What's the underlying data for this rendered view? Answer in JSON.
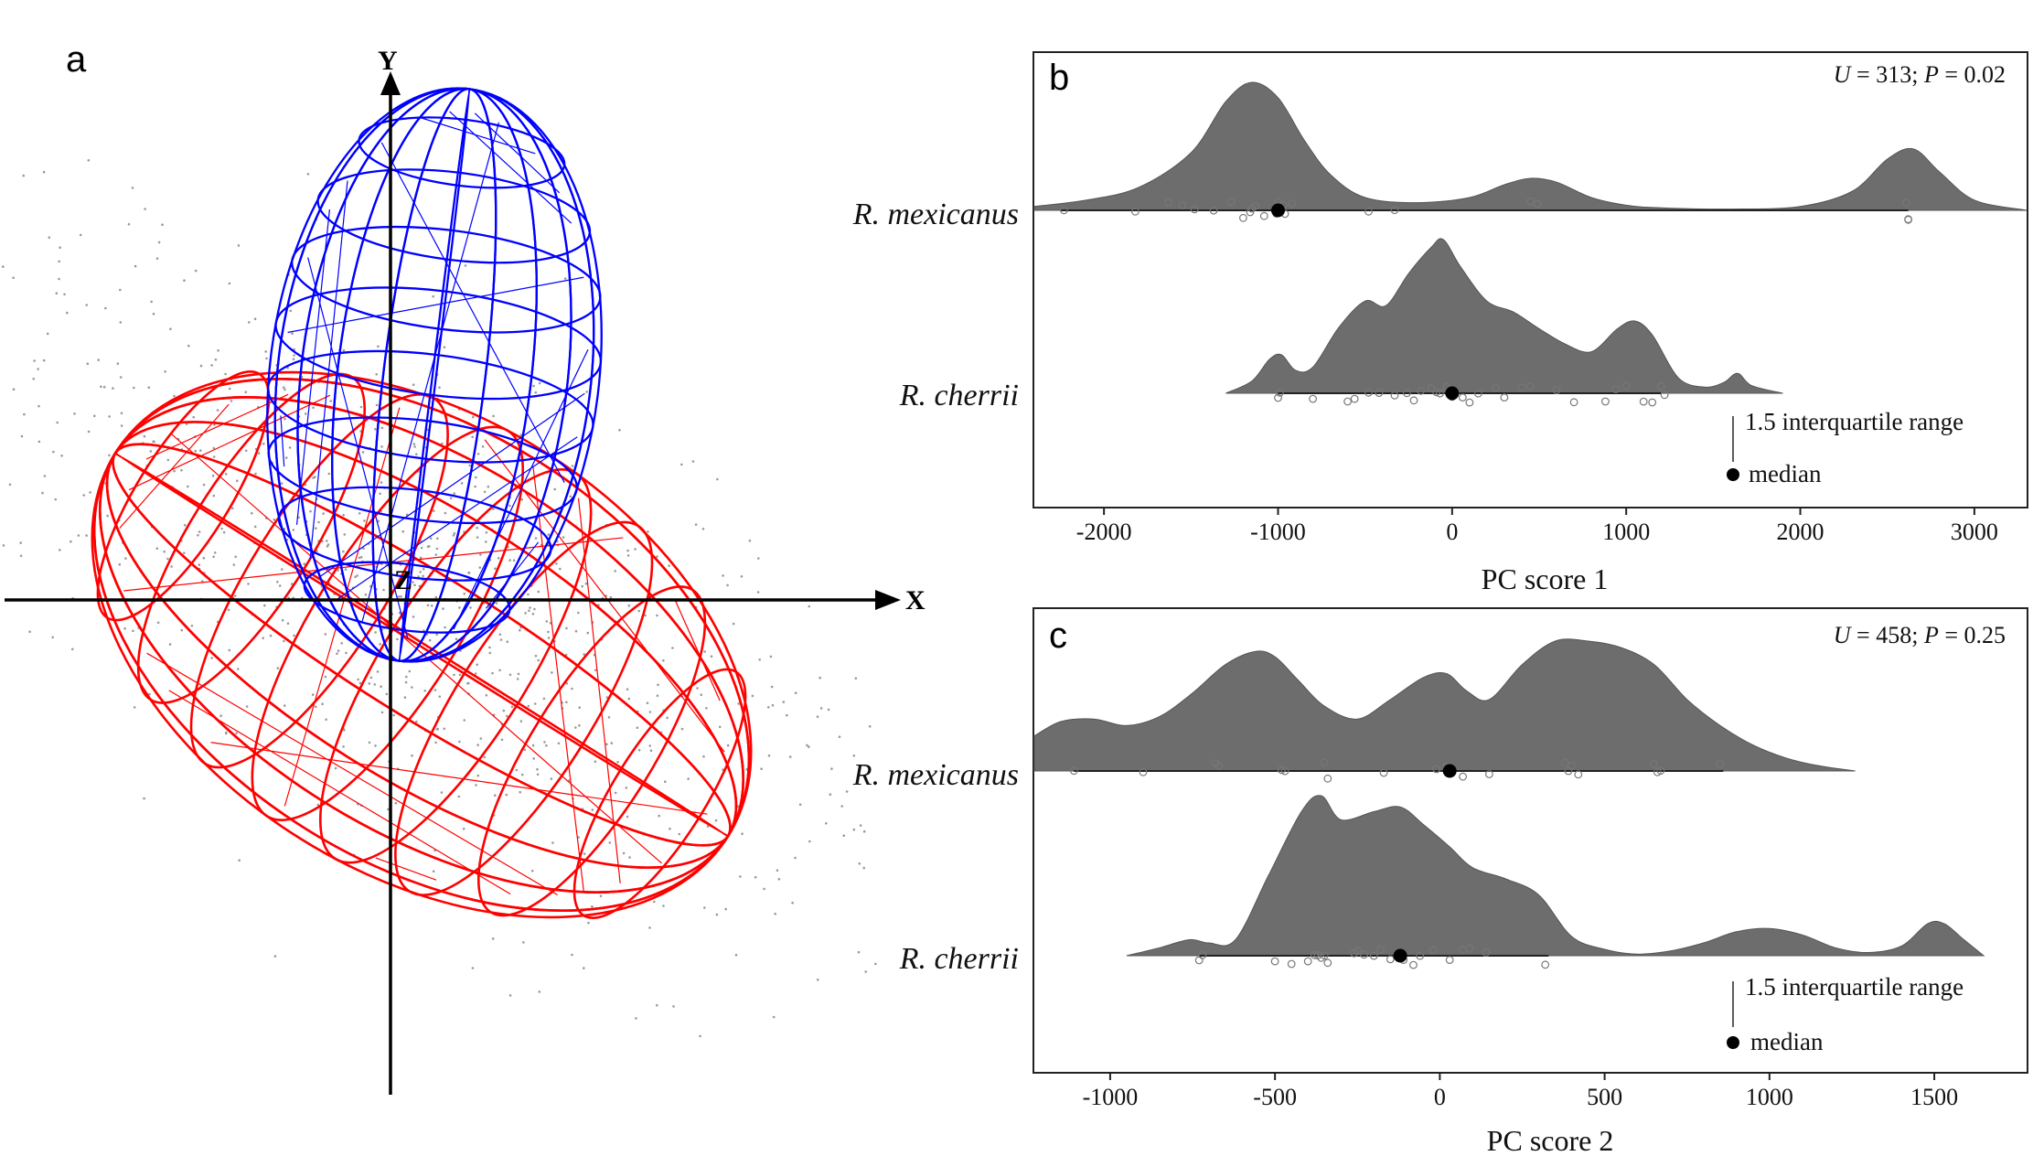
{
  "panel_labels": {
    "a": "a",
    "b": "b",
    "c": "c"
  },
  "panel_a": {
    "axis_labels": {
      "x": "X",
      "y": "Y",
      "z": "Z"
    },
    "ellipsoid_colors": {
      "first": "#0000ff",
      "second": "#ff0000",
      "points": "#9a9a9a"
    }
  },
  "chart_data": [
    {
      "type": "raincloud",
      "panel": "b",
      "xlabel": "PC score 1",
      "xlim": [
        -2400,
        3300
      ],
      "xticks": [
        -2000,
        -1000,
        0,
        1000,
        2000,
        3000
      ],
      "annotation": {
        "U_label": "U",
        "U_value": " = 313; ",
        "P_label": "P",
        "P_value": " = 0.02"
      },
      "legend": {
        "range_label": "1.5 interquartile range",
        "median_label": "median"
      },
      "fill_color": "#6d6d6d",
      "series": [
        {
          "name": "R. mexicanus",
          "median": -1000,
          "whisker": [
            -2250,
            2620
          ],
          "density_x": [
            -2400,
            -2100,
            -1800,
            -1500,
            -1300,
            -1150,
            -1000,
            -850,
            -700,
            -500,
            -200,
            100,
            300,
            450,
            600,
            800,
            1000,
            1200,
            1600,
            2000,
            2300,
            2500,
            2650,
            2800,
            3000,
            3300
          ],
          "density_y": [
            0.03,
            0.08,
            0.18,
            0.45,
            0.85,
            1.0,
            0.88,
            0.55,
            0.28,
            0.1,
            0.06,
            0.1,
            0.2,
            0.25,
            0.22,
            0.1,
            0.04,
            0.02,
            0.01,
            0.03,
            0.15,
            0.4,
            0.48,
            0.3,
            0.08,
            0.0
          ],
          "points": [
            -2230,
            -1820,
            -1630,
            -1550,
            -1480,
            -1370,
            -1270,
            -1200,
            -1160,
            -1150,
            -1130,
            -1080,
            -1010,
            -1000,
            -990,
            -970,
            -960,
            -920,
            -480,
            -330,
            490,
            450,
            2620,
            2620,
            2610
          ]
        },
        {
          "name": "R. cherrii",
          "median": 0,
          "whisker": [
            -1000,
            1200
          ],
          "density_x": [
            -1300,
            -1150,
            -1050,
            -980,
            -900,
            -800,
            -650,
            -500,
            -380,
            -250,
            -120,
            -50,
            50,
            200,
            350,
            500,
            650,
            800,
            950,
            1050,
            1150,
            1300,
            1450,
            1560,
            1640,
            1720,
            1900
          ],
          "density_y": [
            0.0,
            0.08,
            0.22,
            0.25,
            0.15,
            0.17,
            0.43,
            0.6,
            0.57,
            0.78,
            0.95,
            1.0,
            0.82,
            0.6,
            0.53,
            0.42,
            0.32,
            0.27,
            0.42,
            0.47,
            0.38,
            0.1,
            0.04,
            0.07,
            0.13,
            0.05,
            0.0
          ],
          "points": [
            -1000,
            -990,
            -800,
            -600,
            -560,
            -480,
            -420,
            -330,
            -260,
            -220,
            -180,
            -120,
            -90,
            -70,
            -30,
            0,
            20,
            60,
            100,
            150,
            250,
            300,
            400,
            450,
            600,
            700,
            880,
            940,
            1000,
            1100,
            1150,
            1200,
            1220
          ]
        }
      ]
    },
    {
      "type": "raincloud",
      "panel": "c",
      "xlabel": "PC score 2",
      "xlim": [
        -1230,
        1780
      ],
      "xticks": [
        -1000,
        -500,
        0,
        500,
        1000,
        1500
      ],
      "annotation": {
        "U_label": "U",
        "U_value": " = 458; ",
        "P_label": "P",
        "P_value": " = 0.25"
      },
      "legend": {
        "range_label": "1.5 interquartile range",
        "median_label": "median"
      },
      "fill_color": "#6d6d6d",
      "series": [
        {
          "name": "R. mexicanus",
          "median": 30,
          "whisker": [
            -1110,
            860
          ],
          "density_x": [
            -1230,
            -1150,
            -1050,
            -950,
            -850,
            -750,
            -650,
            -560,
            -500,
            -430,
            -350,
            -250,
            -150,
            -50,
            20,
            80,
            150,
            250,
            350,
            450,
            550,
            650,
            750,
            850,
            950,
            1050,
            1150,
            1260
          ],
          "density_y": [
            0.27,
            0.38,
            0.4,
            0.35,
            0.42,
            0.6,
            0.82,
            0.92,
            0.88,
            0.7,
            0.5,
            0.4,
            0.55,
            0.72,
            0.75,
            0.62,
            0.55,
            0.82,
            1.0,
            1.0,
            0.95,
            0.82,
            0.55,
            0.35,
            0.2,
            0.1,
            0.04,
            0.0
          ],
          "points": [
            -1110,
            -900,
            -680,
            -670,
            -480,
            -470,
            -350,
            -340,
            -170,
            -10,
            20,
            70,
            150,
            380,
            390,
            400,
            420,
            650,
            660,
            670,
            850
          ]
        },
        {
          "name": "R. cherrii",
          "median": -120,
          "whisker": [
            -730,
            330
          ],
          "density_x": [
            -950,
            -850,
            -760,
            -700,
            -620,
            -520,
            -420,
            -360,
            -300,
            -200,
            -120,
            -50,
            30,
            100,
            200,
            300,
            400,
            500,
            600,
            700,
            800,
            900,
            1000,
            1100,
            1200,
            1300,
            1400,
            1480,
            1530,
            1590,
            1650
          ],
          "density_y": [
            0.0,
            0.05,
            0.1,
            0.08,
            0.1,
            0.5,
            0.9,
            1.0,
            0.85,
            0.9,
            0.93,
            0.82,
            0.68,
            0.55,
            0.48,
            0.38,
            0.12,
            0.04,
            0.01,
            0.03,
            0.08,
            0.15,
            0.17,
            0.13,
            0.05,
            0.02,
            0.06,
            0.2,
            0.2,
            0.1,
            0.0
          ],
          "points": [
            -730,
            -720,
            -500,
            -450,
            -400,
            -380,
            -370,
            -360,
            -350,
            -340,
            -260,
            -250,
            -230,
            -200,
            -180,
            -150,
            -120,
            -110,
            -80,
            -60,
            -20,
            30,
            70,
            90,
            140,
            320
          ]
        }
      ]
    }
  ]
}
